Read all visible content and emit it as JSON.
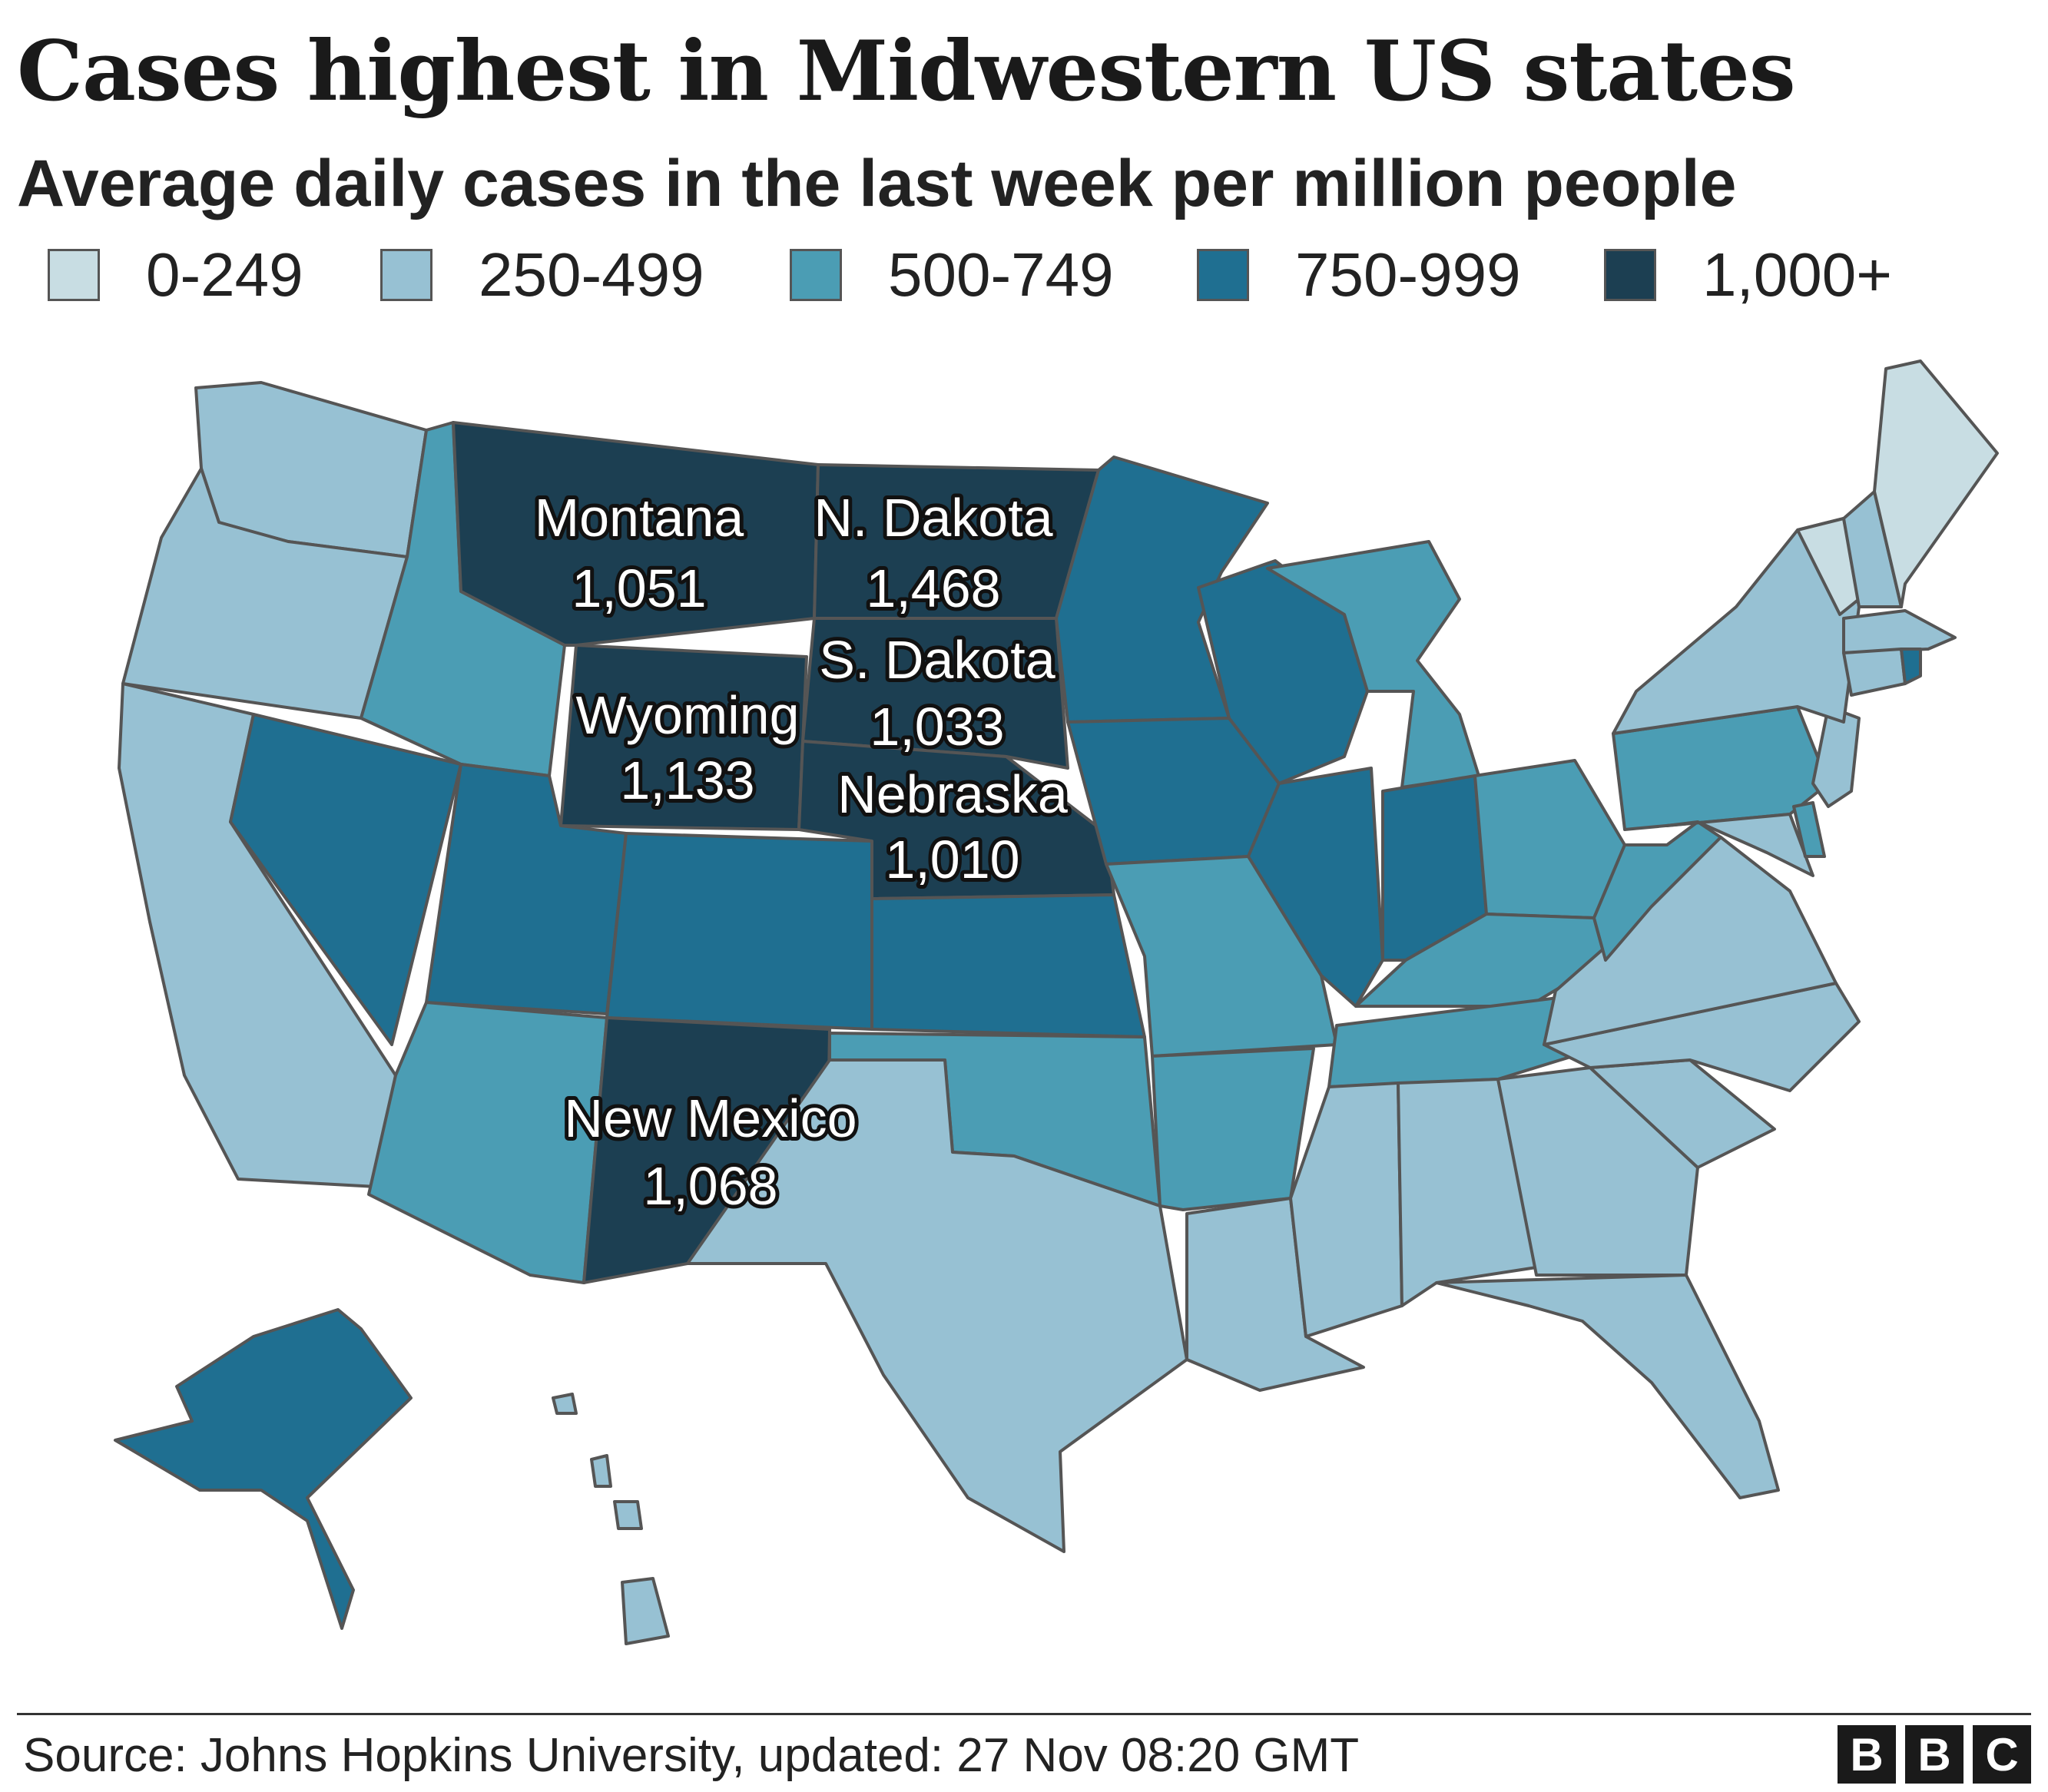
{
  "title": "Cases highest in Midwestern US states",
  "subtitle": "Average daily cases in the last week per million people",
  "legend": [
    {
      "label": "0-249",
      "color": "#c8dde3"
    },
    {
      "label": "250-499",
      "color": "#97c1d3"
    },
    {
      "label": "500-749",
      "color": "#4b9db4"
    },
    {
      "label": "750-999",
      "color": "#1f6f91"
    },
    {
      "label": "1,000+",
      "color": "#1c3f52"
    }
  ],
  "map_labels": {
    "montana": {
      "name": "Montana",
      "value": "1,051"
    },
    "north_dakota": {
      "name": "N. Dakota",
      "value": "1,468"
    },
    "south_dakota": {
      "name": "S. Dakota",
      "value": "1,033"
    },
    "wyoming": {
      "name": "Wyoming",
      "value": "1,133"
    },
    "nebraska": {
      "name": "Nebraska",
      "value": "1,010"
    },
    "new_mexico": {
      "name": "New Mexico",
      "value": "1,068"
    }
  },
  "footer": {
    "source": "Source: Johns Hopkins University, updated: 27 Nov 08:20 GMT",
    "logo": [
      "B",
      "B",
      "C"
    ]
  }
}
